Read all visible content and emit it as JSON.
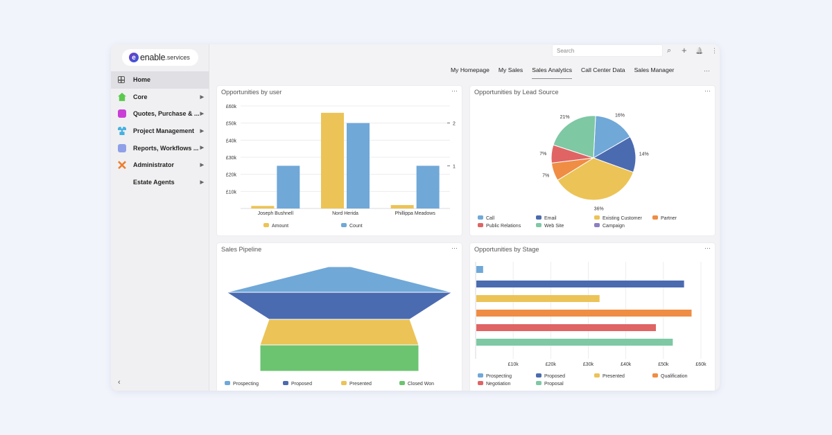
{
  "app": {
    "logo_text": "enable",
    "logo_sub": ".services"
  },
  "sidebar": {
    "items": [
      {
        "label": "Home",
        "icon": "grid-icon",
        "active": true,
        "chevron": false,
        "color": "#555555"
      },
      {
        "label": "Core",
        "icon": "house-icon",
        "active": false,
        "chevron": true,
        "color": "#5bc94d"
      },
      {
        "label": "Quotes, Purchase & ...",
        "icon": "piggy-bank-icon",
        "active": false,
        "chevron": true,
        "color": "#c93fd6"
      },
      {
        "label": "Project Management",
        "icon": "network-icon",
        "active": false,
        "chevron": true,
        "color": "#45b0e0"
      },
      {
        "label": "Reports, Workflows ...",
        "icon": "truck-icon",
        "active": false,
        "chevron": true,
        "color": "#8fa0e8"
      },
      {
        "label": "Administrator",
        "icon": "tools-icon",
        "active": false,
        "chevron": true,
        "color": "#ef7d2c"
      },
      {
        "label": "Estate Agents",
        "icon": "",
        "active": false,
        "chevron": true,
        "color": ""
      }
    ],
    "collapse_glyph": "‹"
  },
  "topbar": {
    "search_placeholder": "Search",
    "search_glyph": "⌕",
    "add_glyph": "+",
    "bell_glyph": "🔔",
    "kebab_glyph": "⋮"
  },
  "tabs": {
    "items": [
      "My Homepage",
      "My Sales",
      "Sales Analytics",
      "Call Center Data",
      "Sales Manager"
    ],
    "active": "Sales Analytics",
    "more_glyph": "···"
  },
  "cards": {
    "more_glyph": "···",
    "opp_user_title": "Opportunities by user",
    "lead_title": "Opportunities by Lead Source",
    "pipeline_title": "Sales Pipeline",
    "stage_title": "Opportunities by Stage"
  },
  "chart_data": [
    {
      "type": "bar",
      "title": "Opportunities by user",
      "categories": [
        "Joseph Bushnell",
        "Nord Herida",
        "Phillippa Meadows"
      ],
      "y_ticks": [
        "£10k",
        "£20k",
        "£30k",
        "£40k",
        "£50k",
        "£60k"
      ],
      "y2_ticks": [
        "1",
        "2"
      ],
      "ylim": [
        0,
        60000
      ],
      "y2lim": [
        0,
        2.4
      ],
      "series": [
        {
          "name": "Amount",
          "axis": "left",
          "values": [
            1500,
            56000,
            2000
          ],
          "color": "#ecc356"
        },
        {
          "name": "Count",
          "axis": "right",
          "values": [
            1,
            2,
            1
          ],
          "color": "#70a8d8"
        }
      ],
      "legend": "bottom"
    },
    {
      "type": "pie",
      "title": "Opportunities by Lead Source",
      "slices": [
        {
          "name": "Call",
          "value": 16,
          "label": "16%",
          "color": "#70a8d8"
        },
        {
          "name": "Email",
          "value": 14,
          "label": "14%",
          "color": "#4b6bb0"
        },
        {
          "name": "Existing Customer",
          "value": 36,
          "label": "36%",
          "color": "#ecc356"
        },
        {
          "name": "Partner",
          "value": 7,
          "label": "7%",
          "color": "#ef8d44"
        },
        {
          "name": "Public Relations",
          "value": 7,
          "label": "7%",
          "color": "#e06464"
        },
        {
          "name": "Web Site",
          "value": 21,
          "label": "21%",
          "color": "#7ec8a4"
        },
        {
          "name": "Campaign",
          "value": 0,
          "label": "",
          "color": "#8c7fc0"
        }
      ],
      "legend": "bottom"
    },
    {
      "type": "funnel",
      "title": "Sales Pipeline",
      "stages": [
        {
          "name": "Prospecting",
          "color": "#70a8d8"
        },
        {
          "name": "Proposed",
          "color": "#4b6bb0"
        },
        {
          "name": "Presented",
          "color": "#ecc356"
        },
        {
          "name": "Closed Won",
          "color": "#6cc471"
        }
      ],
      "legend": "bottom"
    },
    {
      "type": "bar",
      "orientation": "horizontal",
      "title": "Opportunities by Stage",
      "x_ticks": [
        "£10k",
        "£20k",
        "£30k",
        "£40k",
        "£50k",
        "£60k"
      ],
      "xlim": [
        0,
        60000
      ],
      "series": [
        {
          "name": "Prospecting",
          "value": 2000,
          "color": "#70a8d8"
        },
        {
          "name": "Proposed",
          "value": 55500,
          "color": "#4b6bb0"
        },
        {
          "name": "Presented",
          "value": 33000,
          "color": "#ecc356"
        },
        {
          "name": "Qualification",
          "value": 57500,
          "color": "#ef8d44"
        },
        {
          "name": "Negotiation",
          "value": 48000,
          "color": "#e06464"
        },
        {
          "name": "Proposal",
          "value": 52500,
          "color": "#7ec8a4"
        }
      ],
      "legend": "bottom"
    }
  ]
}
